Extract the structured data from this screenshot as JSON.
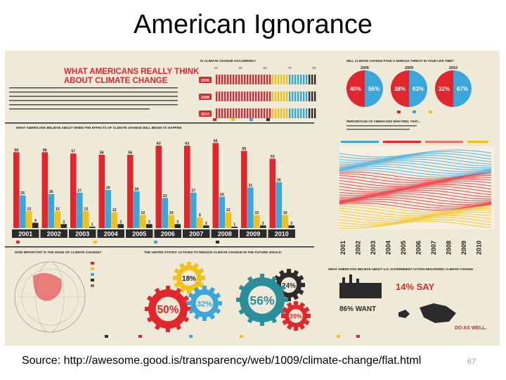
{
  "slide": {
    "title": "American Ignorance",
    "source": "Source: http://awesome.good.is/transparency/web/1009/climate-change/flat.html",
    "page_number": "67"
  },
  "poster": {
    "headline_1": "WHAT AMERICANS REALLY THINK",
    "headline_2": "ABOUT CLIMATE CHANGE",
    "q_occurring": "IS CLIMATE CHANGE OCCURRING?",
    "q_threat": "WILL CLIMATE CHANGE POSE A SERIOUS THREAT IN YOUR LIFE TIME?",
    "q_when": "WHAT AMERICANS BELIEVE ABOUT WHEN THE EFFECTS OF CLIMATE CHANGE WILL BEGIN TO HAPPEN",
    "q_percentage": "PERCENTAGE OF AMERICANS WHO FEEL THAT...",
    "q_important": "HOW IMPORTANT IS THE ISSUE OF CLIMATE CHANGE?",
    "q_reduce": "THE UNITED STATES' ACTIONS TO REDUCE CLIMATE CHANGE IN THE FUTURE WOULD:",
    "q_govt": "WHAT AMERICANS BELIEVE ABOUT U.S. GOVERNMENT ACTION REGARDING CLIMATE CHANGE",
    "say_14": "14% SAY",
    "want_86": "86% WANT",
    "do_as_well": "DO AS WELL.",
    "years_header": [
      "2006",
      "2009",
      "2010"
    ],
    "threat_pcts": [
      "40%",
      "56%",
      "38%",
      "63%",
      "32%",
      "67%"
    ],
    "occurring_years": [
      "2006",
      "2008",
      "2010"
    ],
    "occurring_axis": [
      "10",
      "30",
      "50",
      "70",
      "90"
    ],
    "gear_pcts": [
      "18%",
      "24%",
      "50%",
      "32%",
      "56%",
      "20%"
    ],
    "line_years": [
      "2001",
      "2002",
      "2003",
      "2004",
      "2005",
      "2006",
      "2007",
      "2008",
      "2009",
      "2010"
    ]
  },
  "colors": {
    "red": "#e1262d",
    "blue": "#3ba6d9",
    "yellow": "#f2c21b",
    "dark": "#2b2b2b",
    "cream": "#efe9d8",
    "teal": "#2a8f9a"
  },
  "chart_data": {
    "type": "bar",
    "title": "WHAT AMERICANS BELIEVE ABOUT WHEN THE EFFECTS OF CLIMATE CHANGE WILL BEGIN TO HAPPEN",
    "categories": [
      "2001",
      "2002",
      "2003",
      "2004",
      "2005",
      "2006",
      "2007",
      "2008",
      "2009",
      "2010"
    ],
    "series": [
      {
        "color": "#e1262d",
        "values": [
          58,
          58,
          57,
          56,
          56,
          63,
          63,
          65,
          59,
          53
        ]
      },
      {
        "color": "#3ba6d9",
        "values": [
          25,
          26,
          27,
          29,
          28,
          23,
          27,
          24,
          31,
          35
        ]
      },
      {
        "color": "#f2c21b",
        "values": [
          13,
          13,
          13,
          12,
          10,
          10,
          8,
          12,
          10,
          10
        ]
      },
      {
        "color": "#2b2b2b",
        "values": [
          4,
          3,
          1,
          3,
          3,
          3,
          2,
          1,
          2,
          2
        ]
      }
    ],
    "ylim": [
      0,
      70
    ]
  }
}
